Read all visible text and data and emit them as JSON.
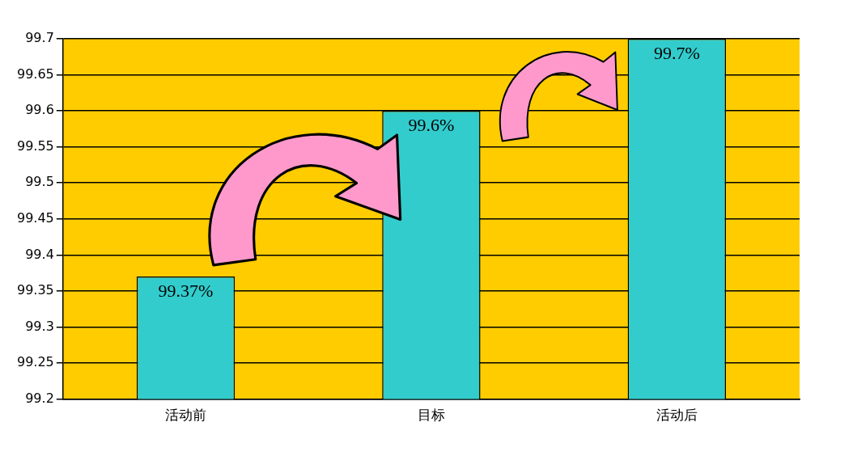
{
  "chart_data": {
    "type": "bar",
    "categories": [
      "活动前",
      "目标",
      "活动后"
    ],
    "values": [
      99.37,
      99.6,
      99.7
    ],
    "color": "#33cccc",
    "value_labels": [
      "99.37%",
      "99.6%",
      "99.7%"
    ],
    "ylim": [
      99.2,
      99.7
    ],
    "yticks": [
      99.2,
      99.25,
      99.3,
      99.35,
      99.4,
      99.45,
      99.5,
      99.55,
      99.6,
      99.65,
      99.7
    ],
    "grid": "y",
    "legend": false
  }
}
